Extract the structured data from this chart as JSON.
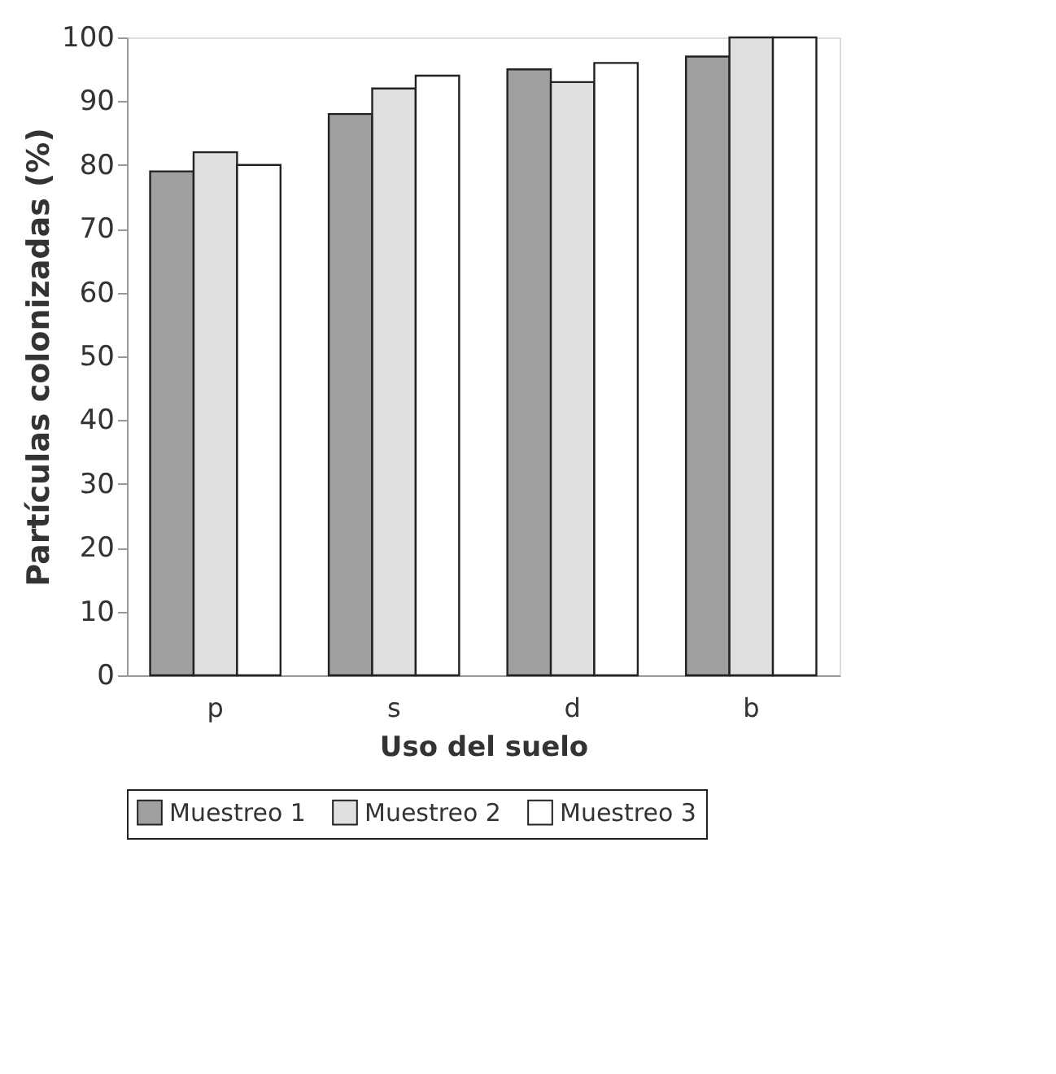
{
  "chart_data": {
    "type": "bar",
    "xlabel": "Uso del suelo",
    "ylabel": "Partículas colonizadas (%)",
    "categories": [
      "p",
      "s",
      "d",
      "b"
    ],
    "series": [
      {
        "name": "Muestreo 1",
        "color": "#a0a0a3",
        "values": [
          79,
          88,
          95,
          97
        ]
      },
      {
        "name": "Muestreo 2",
        "color": "#e0e0e2",
        "values": [
          82,
          92,
          93,
          100
        ]
      },
      {
        "name": "Muestreo 3",
        "color": "#ffffff",
        "values": [
          80,
          94,
          96,
          100
        ]
      }
    ],
    "ylim": [
      0,
      100
    ],
    "yticks": [
      0,
      10,
      20,
      30,
      40,
      50,
      60,
      70,
      80,
      90,
      100
    ],
    "grid": false,
    "legend": "bottom"
  }
}
